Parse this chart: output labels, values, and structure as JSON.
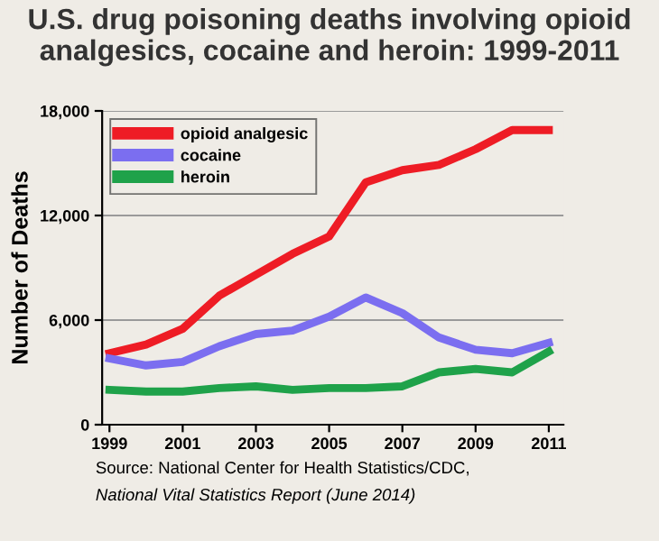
{
  "chart_data": {
    "type": "line",
    "title": "U.S. drug poisoning deaths involving opioid\nanalgesics, cocaine and heroin: 1999-2011",
    "ylabel": "Number of Deaths",
    "x": [
      1999,
      2000,
      2001,
      2002,
      2003,
      2004,
      2005,
      2006,
      2007,
      2008,
      2009,
      2010,
      2011
    ],
    "series": [
      {
        "name": "opioid analgesic",
        "color": "#ee1c25",
        "values": [
          4100,
          4600,
          5500,
          7400,
          8600,
          9800,
          10800,
          13900,
          14600,
          14900,
          15800,
          16900,
          16900
        ]
      },
      {
        "name": "cocaine",
        "color": "#7b6ef0",
        "values": [
          3800,
          3400,
          3600,
          4500,
          5200,
          5400,
          6200,
          7300,
          6400,
          5000,
          4300,
          4100,
          4700
        ]
      },
      {
        "name": "heroin",
        "color": "#1fa24a",
        "values": [
          2000,
          1900,
          1900,
          2100,
          2200,
          2000,
          2100,
          2100,
          2200,
          3000,
          3200,
          3000,
          4200
        ]
      }
    ],
    "xlim": [
      1998.8,
      2011.4
    ],
    "xticks": [
      1999,
      2001,
      2003,
      2005,
      2007,
      2009,
      2011
    ],
    "ylim": [
      0,
      18000
    ],
    "yticks": [
      {
        "value": 0,
        "label": "0"
      },
      {
        "value": 6000,
        "label": "6,000"
      },
      {
        "value": 12000,
        "label": "12,000"
      },
      {
        "value": 18000,
        "label": "18,000"
      }
    ],
    "grid": "y",
    "legend": "top left",
    "marker": "none",
    "line_style": "solid",
    "annotations": [
      "Source: National Center for Health Statistics/CDC,",
      "National Vital Statistics Report (June 2014)"
    ]
  }
}
